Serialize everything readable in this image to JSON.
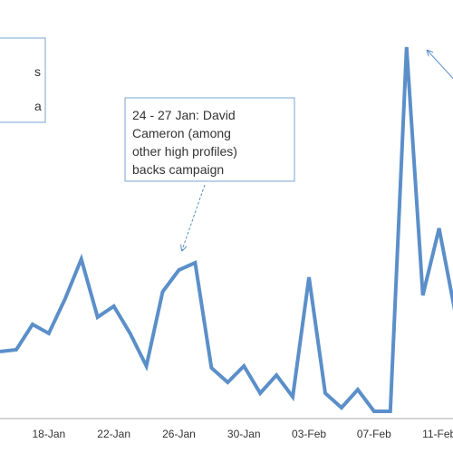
{
  "chart_data": {
    "type": "line",
    "categories": [
      null,
      null,
      null,
      "18-Jan",
      null,
      null,
      null,
      "22-Jan",
      null,
      null,
      null,
      "26-Jan",
      null,
      null,
      null,
      "30-Jan",
      null,
      null,
      null,
      "03-Feb",
      null,
      null,
      null,
      "07-Feb",
      null,
      null,
      null,
      "11-Feb",
      null
    ],
    "series": [
      {
        "color": "#5b8fc9",
        "values": [
          18.5,
          19,
          26,
          23.5,
          33,
          44,
          28,
          31,
          23.5,
          14.5,
          35,
          41,
          43,
          14,
          10,
          14.5,
          7,
          12,
          6,
          39,
          7,
          3,
          8,
          2,
          2,
          102.5,
          34,
          52.5,
          29
        ]
      }
    ],
    "ylim": [
      0,
      115
    ],
    "annotations": [
      {
        "lines": [
          "s",
          "a"
        ]
      },
      {
        "lines": [
          "24 - 27 Jan: David",
          "Cameron (among",
          "other high profiles)",
          "backs campaign"
        ]
      }
    ]
  }
}
